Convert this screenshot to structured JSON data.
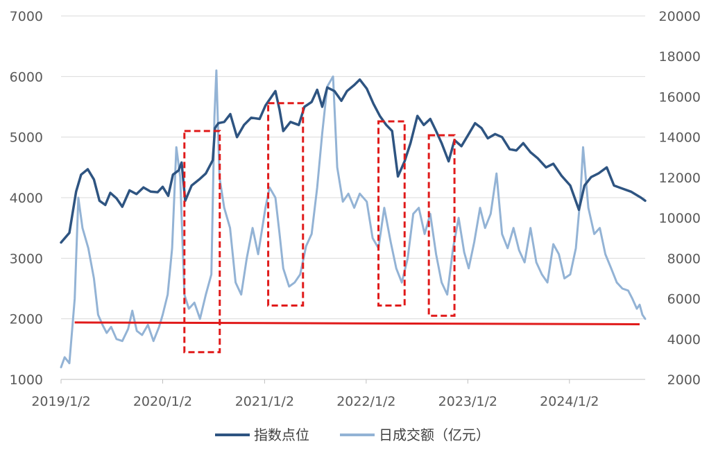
{
  "chart_data": {
    "type": "line",
    "title": "",
    "x_tick_labels": [
      "2019/1/2",
      "2020/1/2",
      "2021/1/2",
      "2022/1/2",
      "2023/1/2",
      "2024/1/2"
    ],
    "x_range": [
      "2019-01-02",
      "2024-09-30"
    ],
    "y_left": {
      "range": [
        1000,
        7000
      ],
      "ticks": [
        "1000",
        "2000",
        "3000",
        "4000",
        "5000",
        "6000",
        "7000"
      ]
    },
    "y_right": {
      "range": [
        2000,
        20000
      ],
      "ticks": [
        "2000",
        "4000",
        "6000",
        "8000",
        "10000",
        "12000",
        "14000",
        "16000",
        "18000",
        "20000"
      ]
    },
    "grid": "horizontal",
    "legend_position": "bottom",
    "series": [
      {
        "name": "指数点位",
        "axis": "left",
        "color": "#2e5481",
        "points": [
          [
            "2019-01-02",
            3260
          ],
          [
            "2019-02-01",
            3420
          ],
          [
            "2019-02-25",
            4100
          ],
          [
            "2019-03-15",
            4380
          ],
          [
            "2019-04-08",
            4470
          ],
          [
            "2019-04-30",
            4300
          ],
          [
            "2019-05-20",
            3950
          ],
          [
            "2019-06-10",
            3880
          ],
          [
            "2019-06-28",
            4080
          ],
          [
            "2019-07-20",
            3990
          ],
          [
            "2019-08-10",
            3850
          ],
          [
            "2019-09-05",
            4120
          ],
          [
            "2019-09-30",
            4060
          ],
          [
            "2019-10-25",
            4170
          ],
          [
            "2019-11-20",
            4100
          ],
          [
            "2019-12-15",
            4090
          ],
          [
            "2020-01-02",
            4180
          ],
          [
            "2020-01-22",
            4030
          ],
          [
            "2020-02-08",
            4380
          ],
          [
            "2020-02-28",
            4450
          ],
          [
            "2020-03-10",
            4580
          ],
          [
            "2020-03-23",
            3950
          ],
          [
            "2020-04-15",
            4200
          ],
          [
            "2020-05-12",
            4300
          ],
          [
            "2020-06-05",
            4400
          ],
          [
            "2020-06-30",
            4620
          ],
          [
            "2020-07-08",
            5150
          ],
          [
            "2020-07-20",
            5230
          ],
          [
            "2020-08-10",
            5250
          ],
          [
            "2020-09-01",
            5380
          ],
          [
            "2020-09-25",
            5000
          ],
          [
            "2020-10-20",
            5200
          ],
          [
            "2020-11-15",
            5320
          ],
          [
            "2020-12-15",
            5300
          ],
          [
            "2021-01-05",
            5520
          ],
          [
            "2021-02-10",
            5760
          ],
          [
            "2021-02-25",
            5450
          ],
          [
            "2021-03-10",
            5100
          ],
          [
            "2021-04-05",
            5250
          ],
          [
            "2021-05-05",
            5200
          ],
          [
            "2021-05-25",
            5500
          ],
          [
            "2021-06-20",
            5580
          ],
          [
            "2021-07-10",
            5780
          ],
          [
            "2021-07-28",
            5500
          ],
          [
            "2021-08-15",
            5820
          ],
          [
            "2021-09-10",
            5760
          ],
          [
            "2021-10-05",
            5600
          ],
          [
            "2021-10-25",
            5760
          ],
          [
            "2021-11-20",
            5860
          ],
          [
            "2021-12-10",
            5950
          ],
          [
            "2022-01-04",
            5800
          ],
          [
            "2022-01-28",
            5550
          ],
          [
            "2022-02-20",
            5350
          ],
          [
            "2022-03-15",
            5200
          ],
          [
            "2022-04-05",
            5100
          ],
          [
            "2022-04-26",
            4350
          ],
          [
            "2022-05-20",
            4600
          ],
          [
            "2022-06-10",
            4900
          ],
          [
            "2022-07-05",
            5350
          ],
          [
            "2022-07-28",
            5200
          ],
          [
            "2022-08-20",
            5300
          ],
          [
            "2022-09-10",
            5100
          ],
          [
            "2022-09-30",
            4900
          ],
          [
            "2022-10-25",
            4600
          ],
          [
            "2022-11-15",
            4950
          ],
          [
            "2022-12-10",
            4850
          ],
          [
            "2023-01-05",
            5050
          ],
          [
            "2023-01-28",
            5230
          ],
          [
            "2023-02-20",
            5150
          ],
          [
            "2023-03-15",
            4980
          ],
          [
            "2023-04-10",
            5050
          ],
          [
            "2023-05-05",
            5000
          ],
          [
            "2023-06-01",
            4800
          ],
          [
            "2023-06-25",
            4780
          ],
          [
            "2023-07-20",
            4900
          ],
          [
            "2023-08-15",
            4750
          ],
          [
            "2023-09-10",
            4650
          ],
          [
            "2023-10-10",
            4500
          ],
          [
            "2023-11-05",
            4560
          ],
          [
            "2023-12-05",
            4360
          ],
          [
            "2024-01-05",
            4200
          ],
          [
            "2024-02-05",
            3800
          ],
          [
            "2024-02-25",
            4200
          ],
          [
            "2024-03-20",
            4340
          ],
          [
            "2024-04-15",
            4400
          ],
          [
            "2024-05-15",
            4500
          ],
          [
            "2024-06-10",
            4200
          ],
          [
            "2024-07-10",
            4150
          ],
          [
            "2024-08-10",
            4100
          ],
          [
            "2024-09-15",
            4000
          ],
          [
            "2024-09-30",
            3950
          ]
        ]
      },
      {
        "name": "日成交额（亿元）",
        "axis": "right",
        "color": "#93b3d5",
        "points": [
          [
            "2019-01-02",
            2600
          ],
          [
            "2019-01-15",
            3100
          ],
          [
            "2019-02-01",
            2800
          ],
          [
            "2019-02-20",
            6000
          ],
          [
            "2019-03-05",
            11000
          ],
          [
            "2019-03-20",
            9500
          ],
          [
            "2019-04-10",
            8500
          ],
          [
            "2019-04-30",
            7000
          ],
          [
            "2019-05-15",
            5200
          ],
          [
            "2019-05-31",
            4700
          ],
          [
            "2019-06-15",
            4300
          ],
          [
            "2019-07-01",
            4600
          ],
          [
            "2019-07-20",
            4000
          ],
          [
            "2019-08-10",
            3900
          ],
          [
            "2019-08-31",
            4500
          ],
          [
            "2019-09-15",
            5400
          ],
          [
            "2019-10-01",
            4400
          ],
          [
            "2019-10-20",
            4200
          ],
          [
            "2019-11-10",
            4700
          ],
          [
            "2019-11-30",
            3900
          ],
          [
            "2019-12-20",
            4600
          ],
          [
            "2020-01-02",
            5200
          ],
          [
            "2020-01-20",
            6200
          ],
          [
            "2020-02-05",
            8500
          ],
          [
            "2020-02-20",
            13500
          ],
          [
            "2020-03-05",
            12000
          ],
          [
            "2020-03-20",
            6200
          ],
          [
            "2020-04-05",
            5500
          ],
          [
            "2020-04-25",
            5800
          ],
          [
            "2020-05-15",
            5000
          ],
          [
            "2020-06-05",
            6200
          ],
          [
            "2020-06-25",
            7200
          ],
          [
            "2020-07-06",
            15000
          ],
          [
            "2020-07-13",
            17300
          ],
          [
            "2020-07-24",
            12000
          ],
          [
            "2020-08-10",
            10500
          ],
          [
            "2020-08-31",
            9500
          ],
          [
            "2020-09-20",
            6800
          ],
          [
            "2020-10-10",
            6200
          ],
          [
            "2020-10-30",
            8000
          ],
          [
            "2020-11-20",
            9500
          ],
          [
            "2020-12-10",
            8200
          ],
          [
            "2021-01-05",
            10500
          ],
          [
            "2021-01-20",
            11500
          ],
          [
            "2021-02-10",
            11000
          ],
          [
            "2021-02-25",
            9200
          ],
          [
            "2021-03-10",
            7500
          ],
          [
            "2021-03-31",
            6600
          ],
          [
            "2021-04-20",
            6800
          ],
          [
            "2021-05-10",
            7200
          ],
          [
            "2021-05-31",
            8600
          ],
          [
            "2021-06-20",
            9200
          ],
          [
            "2021-07-10",
            11500
          ],
          [
            "2021-07-28",
            14200
          ],
          [
            "2021-08-15",
            16500
          ],
          [
            "2021-09-05",
            17000
          ],
          [
            "2021-09-20",
            12500
          ],
          [
            "2021-10-10",
            10800
          ],
          [
            "2021-10-30",
            11200
          ],
          [
            "2021-11-20",
            10500
          ],
          [
            "2021-12-10",
            11200
          ],
          [
            "2022-01-04",
            10800
          ],
          [
            "2022-01-25",
            9000
          ],
          [
            "2022-02-15",
            8500
          ],
          [
            "2022-03-08",
            10500
          ],
          [
            "2022-03-31",
            8800
          ],
          [
            "2022-04-20",
            7500
          ],
          [
            "2022-05-10",
            6800
          ],
          [
            "2022-05-31",
            8000
          ],
          [
            "2022-06-20",
            10200
          ],
          [
            "2022-07-10",
            10500
          ],
          [
            "2022-07-31",
            9200
          ],
          [
            "2022-08-20",
            10200
          ],
          [
            "2022-09-10",
            8200
          ],
          [
            "2022-09-30",
            6800
          ],
          [
            "2022-10-20",
            6200
          ],
          [
            "2022-11-10",
            8500
          ],
          [
            "2022-11-30",
            10000
          ],
          [
            "2022-12-20",
            8300
          ],
          [
            "2023-01-05",
            7500
          ],
          [
            "2023-01-25",
            8800
          ],
          [
            "2023-02-15",
            10500
          ],
          [
            "2023-03-05",
            9500
          ],
          [
            "2023-03-25",
            10200
          ],
          [
            "2023-04-15",
            12200
          ],
          [
            "2023-05-05",
            9200
          ],
          [
            "2023-05-25",
            8500
          ],
          [
            "2023-06-15",
            9500
          ],
          [
            "2023-07-05",
            8400
          ],
          [
            "2023-07-25",
            7800
          ],
          [
            "2023-08-15",
            9500
          ],
          [
            "2023-09-05",
            7800
          ],
          [
            "2023-09-25",
            7200
          ],
          [
            "2023-10-15",
            6800
          ],
          [
            "2023-11-05",
            8700
          ],
          [
            "2023-11-25",
            8200
          ],
          [
            "2023-12-15",
            7000
          ],
          [
            "2024-01-05",
            7200
          ],
          [
            "2024-01-25",
            8500
          ],
          [
            "2024-02-10",
            11000
          ],
          [
            "2024-02-20",
            13500
          ],
          [
            "2024-03-10",
            10500
          ],
          [
            "2024-03-31",
            9200
          ],
          [
            "2024-04-20",
            9500
          ],
          [
            "2024-05-10",
            8200
          ],
          [
            "2024-05-31",
            7500
          ],
          [
            "2024-06-20",
            6800
          ],
          [
            "2024-07-10",
            6500
          ],
          [
            "2024-07-31",
            6400
          ],
          [
            "2024-08-15",
            6000
          ],
          [
            "2024-08-31",
            5500
          ],
          [
            "2024-09-10",
            5700
          ],
          [
            "2024-09-20",
            5200
          ],
          [
            "2024-09-30",
            5000
          ]
        ]
      }
    ],
    "annotations": {
      "boxes": [
        {
          "x": [
            "2020-03-20",
            "2020-07-25"
          ],
          "y_left": [
            1450,
            5100
          ]
        },
        {
          "x": [
            "2021-01-15",
            "2021-05-20"
          ],
          "y_left": [
            2220,
            5560
          ]
        },
        {
          "x": [
            "2022-02-15",
            "2022-05-20"
          ],
          "y_left": [
            2220,
            5260
          ]
        },
        {
          "x": [
            "2022-08-15",
            "2022-11-15"
          ],
          "y_left": [
            2050,
            5030
          ]
        }
      ],
      "hline": {
        "x": [
          "2019-02-20",
          "2024-09-10"
        ],
        "y_left": [
          1940,
          1910
        ]
      }
    }
  }
}
